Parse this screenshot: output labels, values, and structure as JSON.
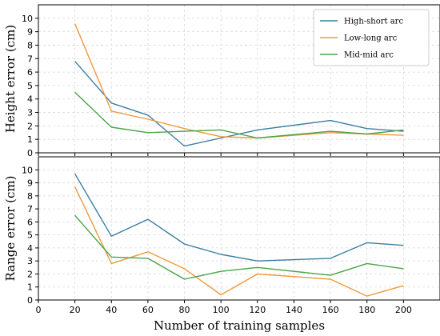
{
  "chart_data": [
    {
      "type": "line",
      "ylabel": "Height error (cm)",
      "xlabel": "",
      "x": [
        20,
        40,
        60,
        80,
        100,
        120,
        160,
        180,
        200
      ],
      "xlim": [
        0,
        220
      ],
      "ylim": [
        0,
        11
      ],
      "xticks": [
        0,
        20,
        40,
        60,
        80,
        100,
        120,
        140,
        160,
        180,
        200
      ],
      "yticks": [
        0,
        1,
        2,
        3,
        4,
        5,
        6,
        7,
        8,
        9,
        10
      ],
      "show_xtick_labels": false,
      "grid": true,
      "legend": "top-right",
      "series": [
        {
          "name": "High-short arc",
          "color": "#3b7ea1",
          "values": [
            6.8,
            3.7,
            2.8,
            0.5,
            1.1,
            1.7,
            2.4,
            1.8,
            1.6
          ]
        },
        {
          "name": "Low-long arc",
          "color": "#f0993a",
          "values": [
            9.6,
            3.1,
            2.5,
            1.8,
            1.2,
            1.1,
            1.5,
            1.4,
            1.3
          ]
        },
        {
          "name": "Mid-mid arc",
          "color": "#4aa34a",
          "values": [
            4.5,
            1.9,
            1.5,
            1.6,
            1.7,
            1.1,
            1.6,
            1.4,
            1.7
          ]
        }
      ]
    },
    {
      "type": "line",
      "ylabel": "Range error (cm)",
      "xlabel": "Number of training samples",
      "x": [
        20,
        40,
        60,
        80,
        100,
        120,
        160,
        180,
        200
      ],
      "xlim": [
        0,
        220
      ],
      "ylim": [
        0,
        11
      ],
      "xticks": [
        0,
        20,
        40,
        60,
        80,
        100,
        120,
        140,
        160,
        180,
        200
      ],
      "yticks": [
        0,
        1,
        2,
        3,
        4,
        5,
        6,
        7,
        8,
        9,
        10
      ],
      "show_xtick_labels": true,
      "grid": true,
      "series": [
        {
          "name": "High-short arc",
          "color": "#3b7ea1",
          "values": [
            9.7,
            4.9,
            6.2,
            4.3,
            3.5,
            3.0,
            3.2,
            4.4,
            4.2
          ]
        },
        {
          "name": "Low-long arc",
          "color": "#f0993a",
          "values": [
            8.7,
            2.8,
            3.7,
            2.4,
            0.4,
            2.0,
            1.6,
            0.3,
            1.1
          ]
        },
        {
          "name": "Mid-mid arc",
          "color": "#4aa34a",
          "values": [
            6.5,
            3.3,
            3.2,
            1.6,
            2.2,
            2.5,
            1.9,
            2.8,
            2.4
          ]
        }
      ]
    }
  ]
}
